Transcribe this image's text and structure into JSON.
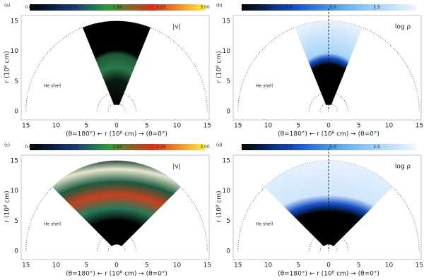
{
  "panels": [
    {
      "label": "(a)",
      "quantity": "|v|",
      "colorbar_ticks": [
        "0.00",
        "0.75",
        "1.50",
        "2.25",
        "3.00"
      ],
      "annotation": "He shell",
      "x_label": "(θ=180°) ← r (10⁸ cm) → (θ=0°)",
      "y_label": "r (10⁸ cm)",
      "x_ticks": [
        "15",
        "10",
        "5",
        "0",
        "5",
        "10",
        "15"
      ],
      "y_ticks": [
        "0",
        "5",
        "10",
        "15"
      ]
    },
    {
      "label": "(b)",
      "quantity": "log ρ",
      "colorbar_ticks": [
        "10.0",
        "7.5",
        "5.0",
        "2.5"
      ],
      "annotation": "He shell",
      "x_label": "(θ=180°) ← r (10⁸ cm) → (θ=0°)",
      "y_label": "r (10⁸ cm)",
      "x_ticks": [
        "15",
        "10",
        "5",
        "0",
        "5",
        "10",
        "15"
      ],
      "y_ticks": [
        "0",
        "5",
        "10",
        "15"
      ]
    },
    {
      "label": "(c)",
      "quantity": "|v|",
      "colorbar_ticks": [
        "0.00",
        "0.75",
        "1.50",
        "2.25",
        "3.00"
      ],
      "annotation": "He shell",
      "x_label": "(θ=180°) ← r (10⁸ cm) → (θ=0°)",
      "y_label": "r (10⁸ cm)",
      "x_ticks": [
        "15",
        "10",
        "5",
        "0",
        "5",
        "10",
        "15"
      ],
      "y_ticks": [
        "0",
        "5",
        "10",
        "15"
      ]
    },
    {
      "label": "(d)",
      "quantity": "log ρ",
      "colorbar_ticks": [
        "10.0",
        "7.5",
        "5.0",
        "2.5"
      ],
      "annotation": "He shell",
      "x_label": "(θ=180°) ← r (10⁸ cm) → (θ=0°)",
      "y_label": "r (10⁸ cm)",
      "x_ticks": [
        "15",
        "10",
        "5",
        "0",
        "5",
        "10",
        "15"
      ],
      "y_ticks": [
        "0",
        "5",
        "10",
        "15"
      ]
    }
  ]
}
